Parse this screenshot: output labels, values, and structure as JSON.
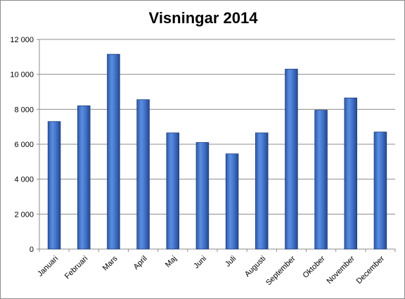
{
  "chart_data": {
    "type": "bar",
    "title": "Visningar 2014",
    "categories": [
      "Januari",
      "Februari",
      "Mars",
      "April",
      "Maj",
      "Juni",
      "Juli",
      "Augusti",
      "September",
      "Oktober",
      "November",
      "December"
    ],
    "values": [
      7300,
      8200,
      11150,
      8550,
      6650,
      6100,
      5450,
      6650,
      10300,
      7950,
      8650,
      6700
    ],
    "ylim": [
      0,
      12000
    ],
    "yticks": [
      0,
      2000,
      4000,
      6000,
      8000,
      10000,
      12000
    ],
    "ytick_labels": [
      "0",
      "2 000",
      "4 000",
      "6 000",
      "8 000",
      "10 000",
      "12 000"
    ],
    "grid": true,
    "legend": "none",
    "bar_color": "#3f6fc0",
    "bar_edge_color": "#1f3f80"
  }
}
